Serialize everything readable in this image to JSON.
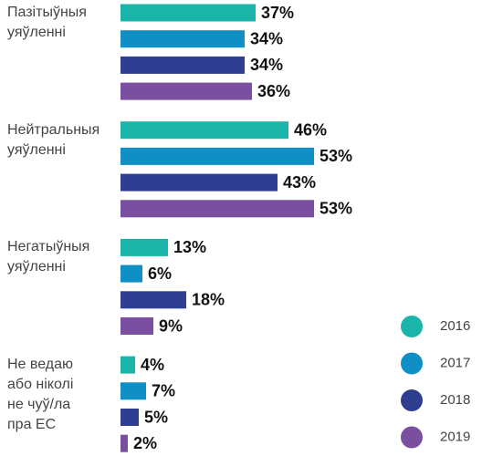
{
  "chart_data": {
    "type": "bar",
    "orientation": "horizontal",
    "categories": [
      "Пазітыўныя\nуяўленні",
      "Нейтральныя\nуяўленні",
      "Негатыўныя\nуяўленні",
      "Не ведаю\nабо ніколі\nне чуў/ла\nпра ЕС"
    ],
    "series": [
      {
        "name": "2016",
        "color": "#1ab5a8",
        "values": [
          37,
          46,
          13,
          4
        ],
        "value_labels": [
          "37%",
          "46%",
          "13%",
          "4%"
        ]
      },
      {
        "name": "2017",
        "color": "#0f8fc4",
        "values": [
          34,
          53,
          6,
          7
        ],
        "value_labels": [
          "34%",
          "53%",
          "6%",
          "7%"
        ]
      },
      {
        "name": "2018",
        "color": "#2e3e91",
        "values": [
          34,
          43,
          18,
          5
        ],
        "value_labels": [
          "34%",
          "43%",
          "18%",
          "5%"
        ]
      },
      {
        "name": "2019",
        "color": "#7b4fa0",
        "values": [
          36,
          53,
          9,
          2
        ],
        "value_labels": [
          "36%",
          "53%",
          "9%",
          "2%"
        ]
      }
    ],
    "legend": "bottom-right"
  }
}
